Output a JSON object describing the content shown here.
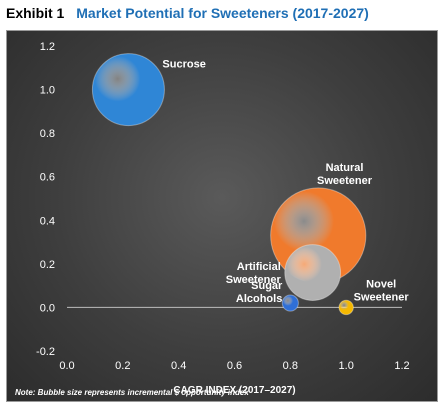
{
  "header": {
    "exhibit": "Exhibit 1",
    "title": "Market Potential for Sweeteners (2017-2027)"
  },
  "chart_data": {
    "type": "scatter",
    "subtype": "bubble",
    "title": "Market Potential for Sweeteners (2017-2027)",
    "xlabel": "CAGR INDEX (2017–2027)",
    "ylabel": "",
    "xlim": [
      0.0,
      1.2
    ],
    "ylim": [
      -0.2,
      1.2
    ],
    "xticks": [
      "0.0",
      "0.2",
      "0.4",
      "0.6",
      "0.8",
      "1.0",
      "1.2"
    ],
    "yticks": [
      "-0.2",
      "0.0",
      "0.2",
      "0.4",
      "0.6",
      "0.8",
      "1.0",
      "1.2"
    ],
    "grid": false,
    "note": "Note: Bubble size represents incremental $ opportunity index",
    "points": [
      {
        "label_lines": [
          "Sucrose"
        ],
        "x": 0.22,
        "y": 1.0,
        "size": 1.0,
        "color": "#2f86d6",
        "label_anchor": "right"
      },
      {
        "label_lines": [
          "Natural",
          "Sweetener"
        ],
        "x": 0.9,
        "y": 0.33,
        "size": 1.75,
        "color": "#f07a2c",
        "label_anchor": "above-right"
      },
      {
        "label_lines": [
          "Artificial",
          "Sweetener"
        ],
        "x": 0.88,
        "y": 0.16,
        "size": 0.6,
        "color": "#b0b0b0",
        "label_anchor": "left"
      },
      {
        "label_lines": [
          "Sugar",
          "Alcohols"
        ],
        "x": 0.8,
        "y": 0.02,
        "size": 0.05,
        "color": "#2f6fd6",
        "label_anchor": "left"
      },
      {
        "label_lines": [
          "Novel",
          "Sweetener"
        ],
        "x": 1.0,
        "y": 0.0,
        "size": 0.04,
        "color": "#f5b800",
        "label_anchor": "above-right"
      }
    ]
  }
}
